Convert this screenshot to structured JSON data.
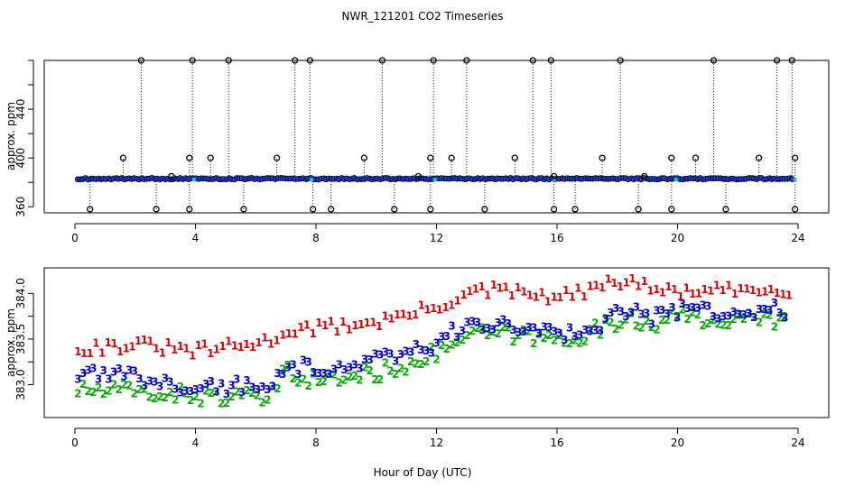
{
  "title": "NWR_121201  CO2 Timeseries",
  "xlabel": "Hour of Day (UTC)",
  "chart_data": [
    {
      "type": "scatter",
      "name": "raw-co2-panel",
      "xlabel": "",
      "ylabel": "approx. ppm",
      "xlim": [
        0,
        24
      ],
      "ylim": [
        355,
        480
      ],
      "xticks": [
        "0",
        "4",
        "8",
        "12",
        "16",
        "20",
        "24"
      ],
      "yticks": [
        "360",
        "400",
        "440"
      ],
      "baseline_ppm": 383,
      "series": [
        {
          "name": "spike",
          "color": "#000000",
          "x": [
            1.6,
            2.2,
            3.2,
            3.8,
            3.9,
            4.5,
            5.1,
            6.7,
            7.3,
            7.8,
            9.6,
            10.2,
            11.4,
            11.8,
            11.9,
            12.5,
            13.0,
            14.6,
            15.2,
            15.8,
            15.9,
            17.5,
            18.1,
            18.9,
            19.8,
            20.6,
            21.2,
            22.7,
            23.3,
            23.8,
            23.9
          ],
          "y": [
            400,
            480,
            385,
            400,
            480,
            400,
            480,
            400,
            480,
            480,
            400,
            480,
            385,
            400,
            480,
            400,
            480,
            400,
            480,
            480,
            385,
            400,
            480,
            385,
            400,
            400,
            480,
            400,
            480,
            480,
            400
          ]
        },
        {
          "name": "dip",
          "color": "#000000",
          "x": [
            0.5,
            2.7,
            3.8,
            5.6,
            7.9,
            8.5,
            10.6,
            11.8,
            13.6,
            15.9,
            16.6,
            18.7,
            19.8,
            21.6,
            23.9
          ],
          "y": [
            358,
            358,
            358,
            358,
            358,
            358,
            358,
            358,
            358,
            358,
            358,
            358,
            358,
            358,
            358
          ]
        }
      ]
    },
    {
      "type": "line",
      "name": "channel-panel",
      "xlabel": "Hour of Day (UTC)",
      "ylabel": "approx. ppm",
      "xlim": [
        0,
        24
      ],
      "ylim": [
        382.64,
        384.28
      ],
      "xticks": [
        "0",
        "4",
        "8",
        "12",
        "16",
        "20",
        "24"
      ],
      "yticks": [
        "383.0",
        "383.5",
        "384.0"
      ],
      "x": [
        0,
        2,
        4,
        6,
        6.5,
        7,
        8,
        10,
        12,
        13,
        14,
        16,
        17,
        18,
        18.4,
        19,
        20,
        22,
        23.5
      ],
      "series": [
        {
          "name": "1",
          "color": "#dd0000",
          "values": [
            383.33,
            383.37,
            383.3,
            383.38,
            383.42,
            383.53,
            383.55,
            383.62,
            383.78,
            383.93,
            383.97,
            383.88,
            383.96,
            384.05,
            384.1,
            383.98,
            383.95,
            383.96,
            383.98
          ]
        },
        {
          "name": "2",
          "color": "#00aa00",
          "values": [
            382.9,
            382.88,
            382.84,
            382.8,
            382.82,
            383.1,
            383.0,
            383.08,
            383.3,
            383.5,
            383.52,
            383.45,
            383.52,
            383.62,
            383.73,
            383.62,
            383.7,
            383.66,
            383.68
          ]
        },
        {
          "name": "3",
          "color": "#0000cc",
          "values": [
            383.05,
            383.05,
            382.93,
            382.95,
            382.98,
            383.2,
            383.1,
            383.25,
            383.4,
            383.62,
            383.6,
            383.52,
            383.58,
            383.72,
            383.8,
            383.7,
            383.78,
            383.75,
            383.78
          ]
        }
      ]
    }
  ]
}
